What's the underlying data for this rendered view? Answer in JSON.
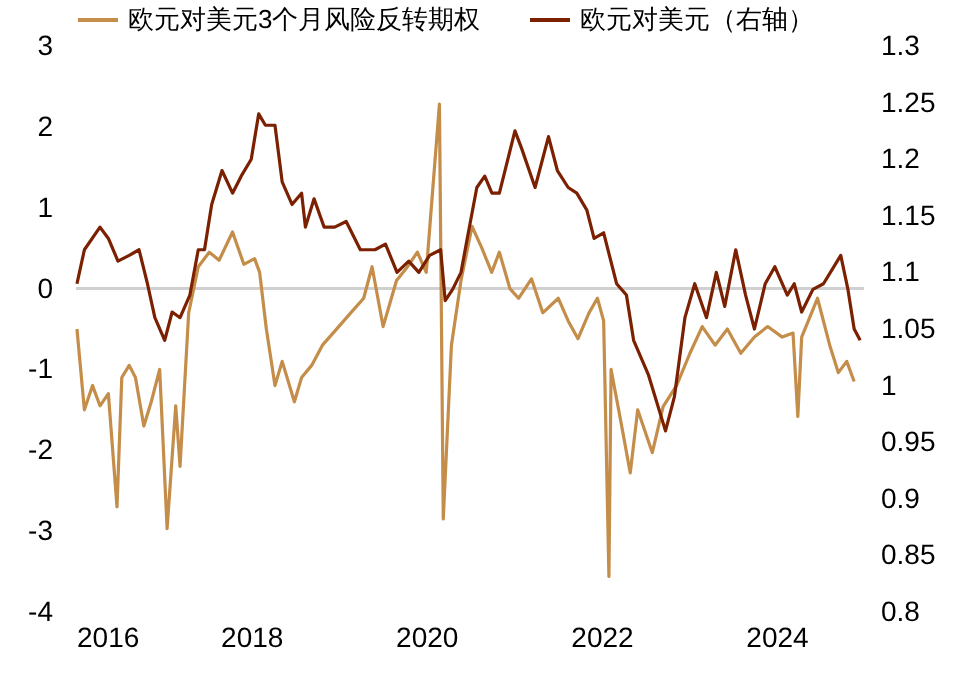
{
  "chart_data": {
    "type": "line",
    "xlim": [
      "2016-01-01",
      "2024-12-31"
    ],
    "xticks": [
      "2016",
      "2018",
      "2020",
      "2022",
      "2024"
    ],
    "ylim": [
      -4,
      3
    ],
    "yticks": [
      -4,
      -3,
      -2,
      -1,
      0,
      1,
      2,
      3
    ],
    "y2lim": [
      0.8,
      1.3
    ],
    "y2ticks": [
      0.8,
      0.85,
      0.9,
      0.95,
      1,
      1.05,
      1.1,
      1.15,
      1.2,
      1.25,
      1.3
    ],
    "legend": "top",
    "grid": false,
    "ref_lines": [
      {
        "axis": "y",
        "value": 0,
        "color": "#d0d0d0"
      }
    ],
    "series": [
      {
        "name": "欧元对美元3个月风险反转期权",
        "color": "#c48d4a",
        "x": [
          "2016-01-05",
          "2016-02-05",
          "2016-03-10",
          "2016-04-10",
          "2016-05-15",
          "2016-06-20",
          "2016-07-10",
          "2016-08-10",
          "2016-09-05",
          "2016-10-10",
          "2016-11-10",
          "2016-12-15",
          "2017-01-15",
          "2017-02-20",
          "2017-03-10",
          "2017-04-15",
          "2017-05-25",
          "2017-07-10",
          "2017-08-20",
          "2017-10-15",
          "2017-12-01",
          "2018-01-15",
          "2018-02-05",
          "2018-03-05",
          "2018-04-10",
          "2018-05-10",
          "2018-06-30",
          "2018-07-30",
          "2018-09-10",
          "2018-10-25",
          "2019-01-01",
          "2019-02-20",
          "2019-04-15",
          "2019-05-20",
          "2019-07-05",
          "2019-08-30",
          "2019-10-10",
          "2019-11-25",
          "2020-01-01",
          "2020-02-25",
          "2020-03-12",
          "2020-04-15",
          "2020-05-25",
          "2020-07-10",
          "2020-08-20",
          "2020-09-30",
          "2020-11-01",
          "2020-12-15",
          "2021-01-20",
          "2021-03-15",
          "2021-05-01",
          "2021-07-05",
          "2021-08-15",
          "2021-09-25",
          "2021-11-10",
          "2021-12-15",
          "2022-01-10",
          "2022-02-01",
          "2022-02-10",
          "2022-03-20",
          "2022-05-01",
          "2022-06-01",
          "2022-08-01",
          "2022-09-15",
          "2022-11-10",
          "2023-01-05",
          "2023-02-25",
          "2023-04-20",
          "2023-06-10",
          "2023-08-05",
          "2023-10-01",
          "2023-11-25",
          "2024-01-25",
          "2024-03-10",
          "2024-03-30",
          "2024-04-15",
          "2024-06-20",
          "2024-08-10",
          "2024-09-15",
          "2024-10-20",
          "2024-11-20"
        ],
        "values": [
          -0.5,
          -1.5,
          -1.2,
          -1.45,
          -1.3,
          -2.7,
          -1.1,
          -0.95,
          -1.1,
          -1.7,
          -1.4,
          -1.0,
          -2.97,
          -1.45,
          -2.2,
          -0.3,
          0.27,
          0.45,
          0.35,
          0.7,
          0.3,
          0.37,
          0.2,
          -0.5,
          -1.2,
          -0.9,
          -1.4,
          -1.1,
          -0.95,
          -0.7,
          -0.47,
          -0.3,
          -0.12,
          0.27,
          -0.47,
          0.1,
          0.25,
          0.45,
          0.2,
          2.28,
          -2.85,
          -0.7,
          0.1,
          0.77,
          0.5,
          0.2,
          0.45,
          0.0,
          -0.12,
          0.12,
          -0.3,
          -0.12,
          -0.4,
          -0.62,
          -0.3,
          -0.12,
          -0.4,
          -3.56,
          -1.0,
          -1.6,
          -2.28,
          -1.5,
          -2.03,
          -1.46,
          -1.2,
          -0.8,
          -0.47,
          -0.7,
          -0.5,
          -0.8,
          -0.6,
          -0.47,
          -0.6,
          -0.55,
          -1.58,
          -0.6,
          -0.12,
          -0.7,
          -1.04,
          -0.9,
          -1.15
        ]
      },
      {
        "name": "欧元对美元（右轴）",
        "color": "#7b2000",
        "axis": "y2",
        "x": [
          "2016-01-05",
          "2016-02-05",
          "2016-04-10",
          "2016-05-15",
          "2016-06-24",
          "2016-08-10",
          "2016-09-20",
          "2016-10-25",
          "2016-11-25",
          "2017-01-05",
          "2017-02-05",
          "2017-03-10",
          "2017-04-20",
          "2017-05-25",
          "2017-06-20",
          "2017-07-20",
          "2017-09-01",
          "2017-10-15",
          "2017-11-20",
          "2018-01-01",
          "2018-02-01",
          "2018-03-01",
          "2018-04-10",
          "2018-05-10",
          "2018-06-20",
          "2018-07-30",
          "2018-08-15",
          "2018-09-20",
          "2018-11-01",
          "2018-12-15",
          "2019-02-01",
          "2019-04-01",
          "2019-06-01",
          "2019-07-15",
          "2019-09-01",
          "2019-10-20",
          "2019-12-01",
          "2020-01-15",
          "2020-03-01",
          "2020-03-20",
          "2020-04-20",
          "2020-05-25",
          "2020-06-20",
          "2020-07-30",
          "2020-09-01",
          "2020-10-01",
          "2020-11-01",
          "2021-01-05",
          "2021-02-01",
          "2021-03-30",
          "2021-05-25",
          "2021-07-01",
          "2021-08-15",
          "2021-09-20",
          "2021-11-01",
          "2021-12-01",
          "2022-01-10",
          "2022-03-05",
          "2022-04-15",
          "2022-05-15",
          "2022-07-15",
          "2022-09-25",
          "2022-11-01",
          "2022-12-15",
          "2023-01-25",
          "2023-03-15",
          "2023-04-25",
          "2023-05-30",
          "2023-07-15",
          "2023-08-25",
          "2023-10-01",
          "2023-11-15",
          "2023-12-25",
          "2024-02-15",
          "2024-03-15",
          "2024-04-15",
          "2024-06-01",
          "2024-07-15",
          "2024-09-25",
          "2024-10-25",
          "2024-11-20",
          "2024-12-15"
        ],
        "values": [
          1.09,
          1.12,
          1.14,
          1.13,
          1.11,
          1.115,
          1.12,
          1.09,
          1.06,
          1.04,
          1.065,
          1.06,
          1.08,
          1.12,
          1.12,
          1.16,
          1.19,
          1.17,
          1.185,
          1.2,
          1.24,
          1.23,
          1.23,
          1.18,
          1.16,
          1.17,
          1.14,
          1.165,
          1.14,
          1.14,
          1.145,
          1.12,
          1.12,
          1.125,
          1.1,
          1.11,
          1.1,
          1.115,
          1.12,
          1.075,
          1.085,
          1.1,
          1.13,
          1.175,
          1.185,
          1.17,
          1.17,
          1.225,
          1.21,
          1.175,
          1.22,
          1.19,
          1.175,
          1.17,
          1.155,
          1.13,
          1.135,
          1.09,
          1.08,
          1.04,
          1.01,
          0.96,
          0.99,
          1.06,
          1.09,
          1.06,
          1.1,
          1.07,
          1.12,
          1.08,
          1.05,
          1.09,
          1.105,
          1.08,
          1.09,
          1.065,
          1.085,
          1.09,
          1.115,
          1.085,
          1.05,
          1.04
        ]
      }
    ]
  }
}
